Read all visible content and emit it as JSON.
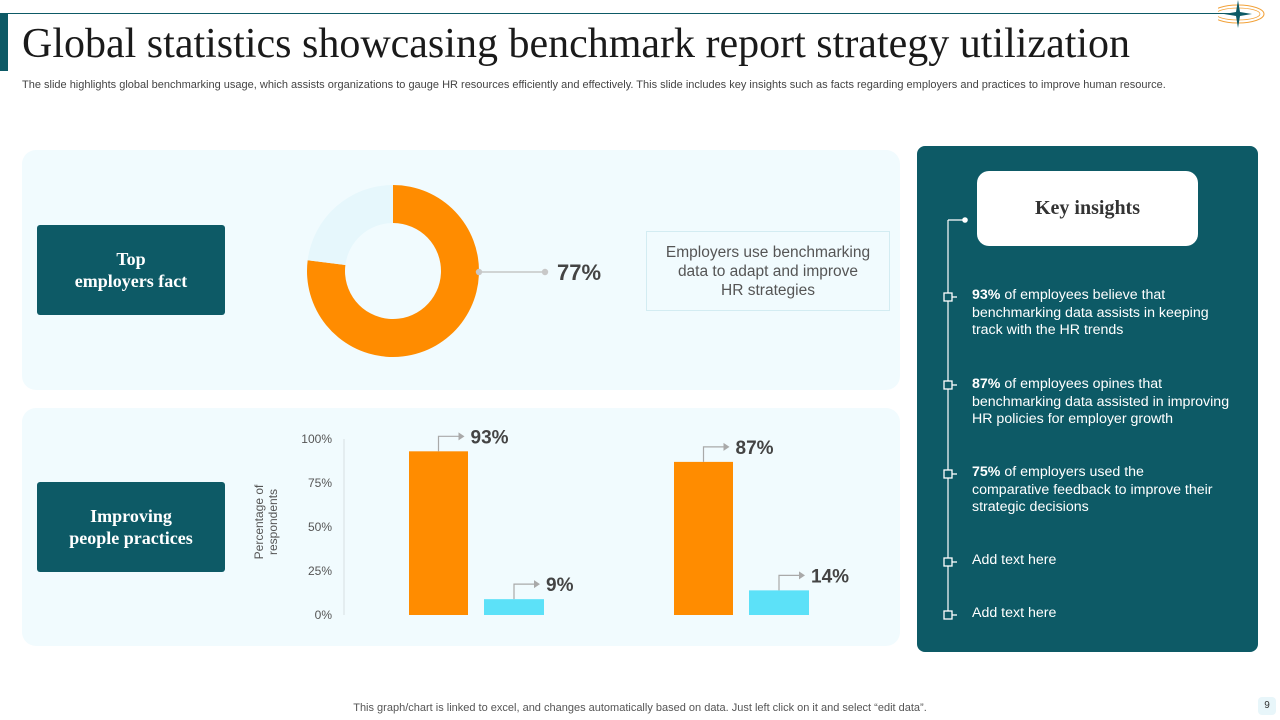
{
  "title": "Global statistics showcasing benchmark report strategy utilization",
  "subtitle": "The slide highlights global benchmarking usage, which assists organizations to gauge HR resources efficiently and effectively. This slide includes key insights such as facts regarding employers and practices to improve human resource.",
  "section_top": {
    "label_line1": "Top",
    "label_line2": "employers fact"
  },
  "section_bottom": {
    "label_line1": "Improving",
    "label_line2": "people practices"
  },
  "callout": {
    "line1": "Employers use benchmarking",
    "line2": "data to adapt and improve",
    "line3": "HR strategies"
  },
  "insights": {
    "heading": "Key insights",
    "items": [
      {
        "bold": "93%",
        "line1_rest": " of employees believe that",
        "line2": "benchmarking data assists in keeping",
        "line3": "track with the HR trends"
      },
      {
        "bold": "87%",
        "line1_rest": " of employees opines that",
        "line2": "benchmarking data assisted in improving",
        "line3": "HR policies for employer growth"
      },
      {
        "bold": "75%",
        "line1_rest": " of employers used the",
        "line2": "comparative feedback to improve their",
        "line3": "strategic decisions"
      },
      {
        "text": "Add text here"
      },
      {
        "text": "Add text here"
      }
    ]
  },
  "footer": "This graph/chart is linked to excel,  and changes automatically based on data. Just left click on it and select “edit data”.",
  "page_number": "9",
  "colors": {
    "teal": "#0d5a66",
    "orange": "#ff8c00",
    "cyan": "#5ce1f8",
    "donut_remainder": "#e6f7fc",
    "panel": "#f1fbfe"
  },
  "chart_data": [
    {
      "type": "pie",
      "subtype": "donut",
      "values": [
        77,
        23
      ],
      "labels": [
        "77%",
        ""
      ]
    },
    {
      "type": "bar",
      "ylabel": "Percentage of respondents",
      "ylim": [
        0,
        100
      ],
      "yticks": [
        "0%",
        "25%",
        "50%",
        "75%",
        "100%"
      ],
      "groups": [
        {
          "values": [
            93,
            9
          ],
          "labels": [
            "93%",
            "9%"
          ]
        },
        {
          "values": [
            87,
            14
          ],
          "labels": [
            "87%",
            "14%"
          ]
        }
      ],
      "grid": false
    }
  ]
}
